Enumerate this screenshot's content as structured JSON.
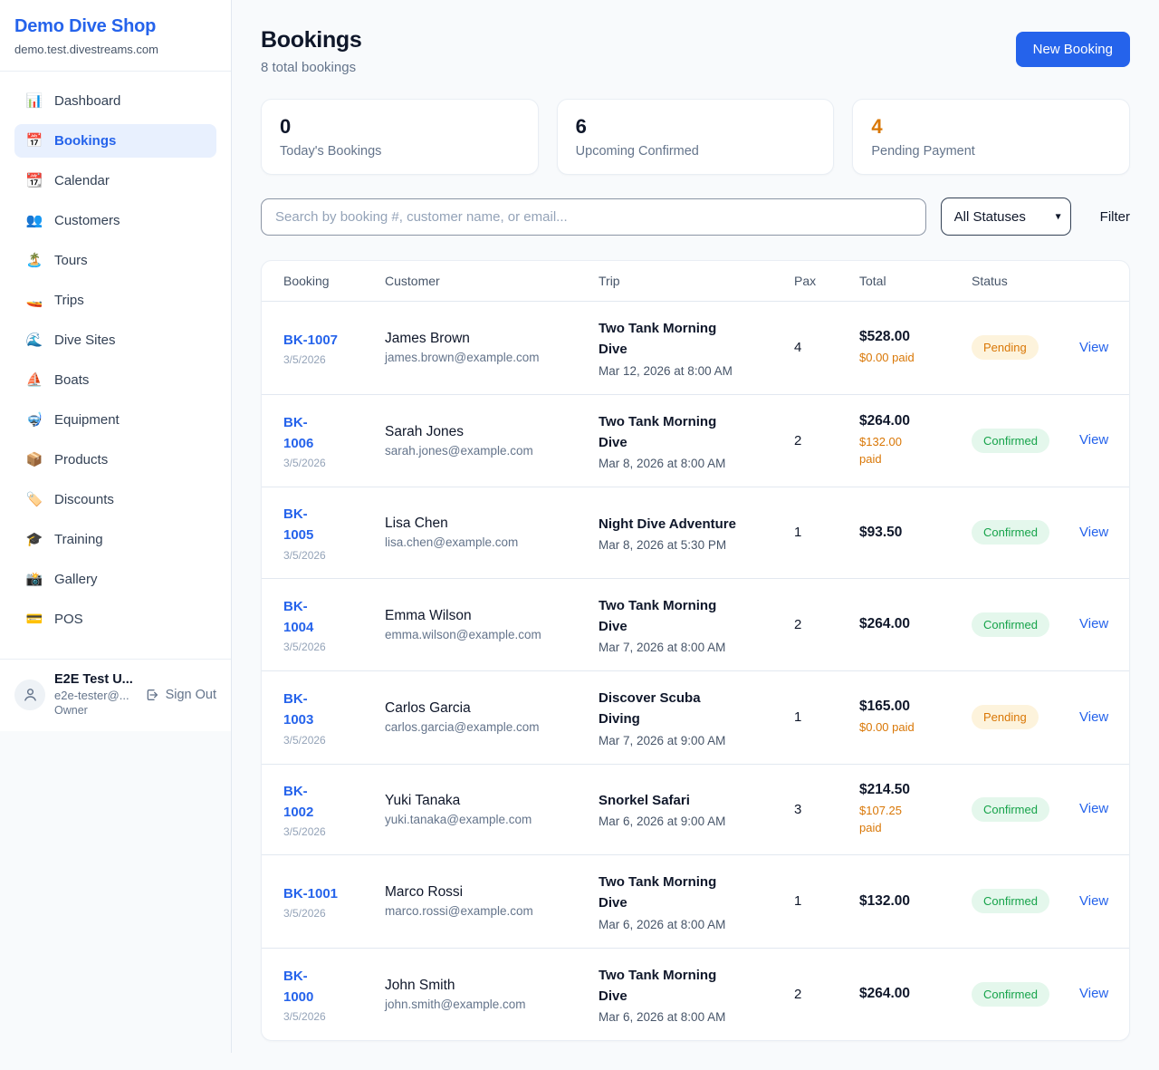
{
  "colors": {
    "accent": "#2563eb",
    "orange": "#d97706",
    "green": "#16a34a",
    "pending_badge_bg": "#fdf3dc",
    "confirmed_badge_bg": "#e4f7ec"
  },
  "sidebar": {
    "brand": {
      "name": "Demo Dive Shop",
      "domain": "demo.test.divestreams.com"
    },
    "nav": [
      {
        "slug": "dashboard",
        "icon": "📊",
        "icon_name": "bar-chart-icon",
        "label": "Dashboard",
        "active": false
      },
      {
        "slug": "bookings",
        "icon": "📅",
        "icon_name": "calendar-icon",
        "label": "Bookings",
        "active": true
      },
      {
        "slug": "calendar",
        "icon": "📆",
        "icon_name": "tear-off-calendar-icon",
        "label": "Calendar",
        "active": false
      },
      {
        "slug": "customers",
        "icon": "👥",
        "icon_name": "people-icon",
        "label": "Customers",
        "active": false
      },
      {
        "slug": "tours",
        "icon": "🏝️",
        "icon_name": "island-icon",
        "label": "Tours",
        "active": false
      },
      {
        "slug": "trips",
        "icon": "🚤",
        "icon_name": "speedboat-icon",
        "label": "Trips",
        "active": false
      },
      {
        "slug": "dive-sites",
        "icon": "🌊",
        "icon_name": "wave-icon",
        "label": "Dive Sites",
        "active": false
      },
      {
        "slug": "boats",
        "icon": "⛵",
        "icon_name": "sailboat-icon",
        "label": "Boats",
        "active": false
      },
      {
        "slug": "equipment",
        "icon": "🤿",
        "icon_name": "diving-mask-icon",
        "label": "Equipment",
        "active": false
      },
      {
        "slug": "products",
        "icon": "📦",
        "icon_name": "package-icon",
        "label": "Products",
        "active": false
      },
      {
        "slug": "discounts",
        "icon": "🏷️",
        "icon_name": "tag-icon",
        "label": "Discounts",
        "active": false
      },
      {
        "slug": "training",
        "icon": "🎓",
        "icon_name": "graduation-cap-icon",
        "label": "Training",
        "active": false
      },
      {
        "slug": "gallery",
        "icon": "📸",
        "icon_name": "camera-icon",
        "label": "Gallery",
        "active": false
      },
      {
        "slug": "pos",
        "icon": "💳",
        "icon_name": "credit-card-icon",
        "label": "POS",
        "active": false
      }
    ],
    "user": {
      "name": "E2E Test U...",
      "email": "e2e-tester@...",
      "role": "Owner",
      "sign_out": "Sign Out"
    }
  },
  "header": {
    "title": "Bookings",
    "subtitle": "8 total bookings",
    "new_booking_label": "New Booking"
  },
  "stats": [
    {
      "value": "0",
      "label": "Today's Bookings",
      "highlight": false
    },
    {
      "value": "6",
      "label": "Upcoming Confirmed",
      "highlight": false
    },
    {
      "value": "4",
      "label": "Pending Payment",
      "highlight": true
    }
  ],
  "filters": {
    "search_placeholder": "Search by booking #, customer name, or email...",
    "status_selected": "All Statuses",
    "filter_label": "Filter"
  },
  "table": {
    "headers": [
      "Booking",
      "Customer",
      "Trip",
      "Pax",
      "Total",
      "Status"
    ],
    "view_label": "View",
    "rows": [
      {
        "id": "BK-1007",
        "date": "3/5/2026",
        "customer": "James Brown",
        "email": "james.brown@example.com",
        "trip": "Two Tank Morning Dive",
        "when": "Mar 12, 2026 at 8:00 AM",
        "pax": "4",
        "total": "$528.00",
        "paid": "$0.00 paid",
        "status": "Pending"
      },
      {
        "id": "BK-\n1006",
        "date": "3/5/2026",
        "customer": "Sarah Jones",
        "email": "sarah.jones@example.com",
        "trip": "Two Tank Morning Dive",
        "when": "Mar 8, 2026 at 8:00 AM",
        "pax": "2",
        "total": "$264.00",
        "paid": "$132.00\npaid",
        "status": "Confirmed"
      },
      {
        "id": "BK-\n1005",
        "date": "3/5/2026",
        "customer": "Lisa Chen",
        "email": "lisa.chen@example.com",
        "trip": "Night Dive Adventure",
        "when": "Mar 8, 2026 at 5:30 PM",
        "pax": "1",
        "total": "$93.50",
        "paid": "",
        "status": "Confirmed"
      },
      {
        "id": "BK-\n1004",
        "date": "3/5/2026",
        "customer": "Emma Wilson",
        "email": "emma.wilson@example.com",
        "trip": "Two Tank Morning Dive",
        "when": "Mar 7, 2026 at 8:00 AM",
        "pax": "2",
        "total": "$264.00",
        "paid": "",
        "status": "Confirmed"
      },
      {
        "id": "BK-\n1003",
        "date": "3/5/2026",
        "customer": "Carlos Garcia",
        "email": "carlos.garcia@example.com",
        "trip": "Discover Scuba Diving",
        "when": "Mar 7, 2026 at 9:00 AM",
        "pax": "1",
        "total": "$165.00",
        "paid": "$0.00 paid",
        "status": "Pending"
      },
      {
        "id": "BK-\n1002",
        "date": "3/5/2026",
        "customer": "Yuki Tanaka",
        "email": "yuki.tanaka@example.com",
        "trip": "Snorkel Safari",
        "when": "Mar 6, 2026 at 9:00 AM",
        "pax": "3",
        "total": "$214.50",
        "paid": "$107.25 paid",
        "status": "Confirmed"
      },
      {
        "id": "BK-1001",
        "date": "3/5/2026",
        "customer": "Marco Rossi",
        "email": "marco.rossi@example.com",
        "trip": "Two Tank Morning Dive",
        "when": "Mar 6, 2026 at 8:00 AM",
        "pax": "1",
        "total": "$132.00",
        "paid": "",
        "status": "Confirmed"
      },
      {
        "id": "BK-\n1000",
        "date": "3/5/2026",
        "customer": "John Smith",
        "email": "john.smith@example.com",
        "trip": "Two Tank Morning Dive",
        "when": "Mar 6, 2026 at 8:00 AM",
        "pax": "2",
        "total": "$264.00",
        "paid": "",
        "status": "Confirmed"
      }
    ]
  }
}
